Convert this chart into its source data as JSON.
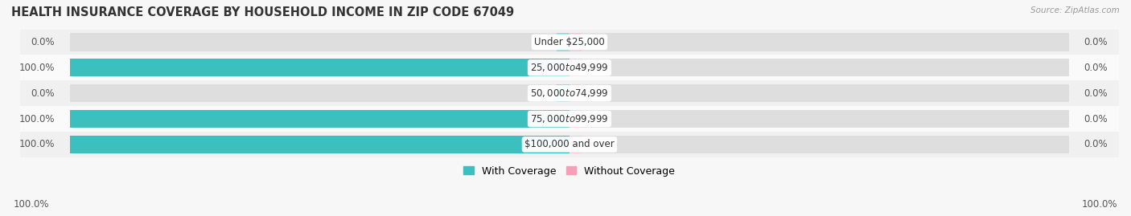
{
  "title": "HEALTH INSURANCE COVERAGE BY HOUSEHOLD INCOME IN ZIP CODE 67049",
  "source": "Source: ZipAtlas.com",
  "categories": [
    "Under $25,000",
    "$25,000 to $49,999",
    "$50,000 to $74,999",
    "$75,000 to $99,999",
    "$100,000 and over"
  ],
  "with_coverage": [
    0.0,
    100.0,
    0.0,
    100.0,
    100.0
  ],
  "without_coverage": [
    0.0,
    0.0,
    0.0,
    0.0,
    0.0
  ],
  "color_with": "#3bbfbf",
  "color_with_light": "#8dd8d8",
  "color_without": "#f5a0b8",
  "color_without_light": "#f5c8d8",
  "row_colors": [
    "#f0f0f0",
    "#fafafa",
    "#f0f0f0",
    "#fafafa",
    "#f0f0f0"
  ],
  "title_fontsize": 10.5,
  "label_fontsize": 8.5,
  "cat_fontsize": 8.5,
  "legend_fontsize": 9,
  "figsize": [
    14.06,
    2.69
  ],
  "dpi": 100,
  "xlim": [
    -110,
    110
  ],
  "bar_height": 0.7,
  "tiny_bar": 2.5,
  "bg_bar_color": "#dedede"
}
